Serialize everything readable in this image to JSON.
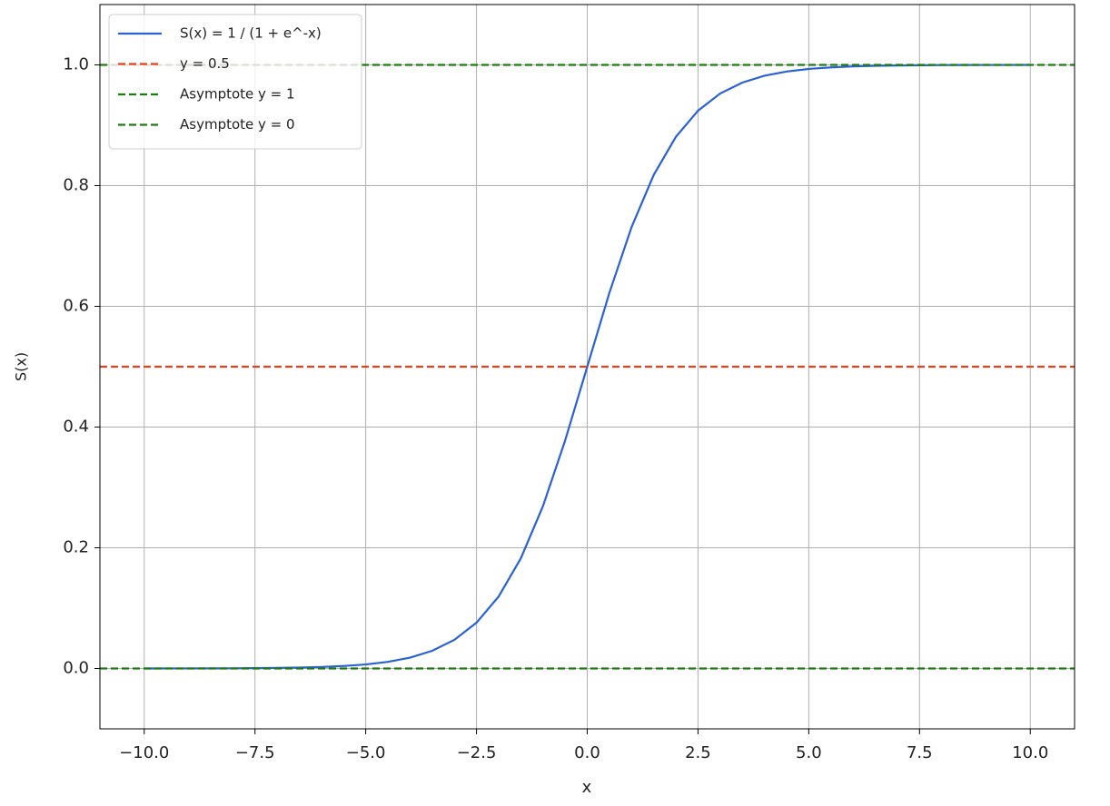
{
  "chart_data": {
    "type": "line",
    "xlabel": "x",
    "ylabel": "S(x)",
    "x": [
      -10,
      -9.5,
      -9,
      -8.5,
      -8,
      -7.5,
      -7,
      -6.5,
      -6,
      -5.5,
      -5,
      -4.5,
      -4,
      -3.5,
      -3,
      -2.5,
      -2,
      -1.5,
      -1,
      -0.5,
      0,
      0.5,
      1,
      1.5,
      2,
      2.5,
      3,
      3.5,
      4,
      4.5,
      5,
      5.5,
      6,
      6.5,
      7,
      7.5,
      8,
      8.5,
      9,
      9.5,
      10
    ],
    "series": [
      {
        "name": "S(x) = 1 / (1 + e^-x)",
        "color": "#2a62d4",
        "values": [
          0.0,
          0.0001,
          0.0001,
          0.0002,
          0.0003,
          0.0006,
          0.0009,
          0.0015,
          0.0025,
          0.0041,
          0.0067,
          0.011,
          0.018,
          0.0293,
          0.0474,
          0.0759,
          0.1192,
          0.1824,
          0.2689,
          0.3775,
          0.5,
          0.6225,
          0.7311,
          0.8176,
          0.8808,
          0.9241,
          0.9526,
          0.9707,
          0.982,
          0.989,
          0.9933,
          0.9959,
          0.9975,
          0.9985,
          0.9991,
          0.9994,
          0.9997,
          0.9998,
          0.9999,
          0.9999,
          1.0
        ]
      }
    ],
    "hlines": [
      {
        "name": "y = 0.5",
        "color": "#e8401c",
        "value": 0.5
      },
      {
        "name": "Asymptote y = 1",
        "color": "#1f7a12",
        "value": 1
      },
      {
        "name": "Asymptote y = 0",
        "color": "#1f7a12",
        "value": 0
      }
    ],
    "xlim": [
      -11,
      11
    ],
    "ylim": [
      -0.1,
      1.1
    ],
    "xticks": [
      {
        "value": -10,
        "label": "−10.0"
      },
      {
        "value": -7.5,
        "label": "−7.5"
      },
      {
        "value": -5,
        "label": "−5.0"
      },
      {
        "value": -2.5,
        "label": "−2.5"
      },
      {
        "value": 0,
        "label": "0.0"
      },
      {
        "value": 2.5,
        "label": "2.5"
      },
      {
        "value": 5,
        "label": "5.0"
      },
      {
        "value": 7.5,
        "label": "7.5"
      },
      {
        "value": 10,
        "label": "10.0"
      }
    ],
    "yticks": [
      {
        "value": 0,
        "label": "0.0"
      },
      0.2,
      0.4,
      0.6,
      0.8,
      {
        "value": 1,
        "label": "1.0"
      }
    ],
    "grid": true,
    "legend": "upper-left"
  }
}
